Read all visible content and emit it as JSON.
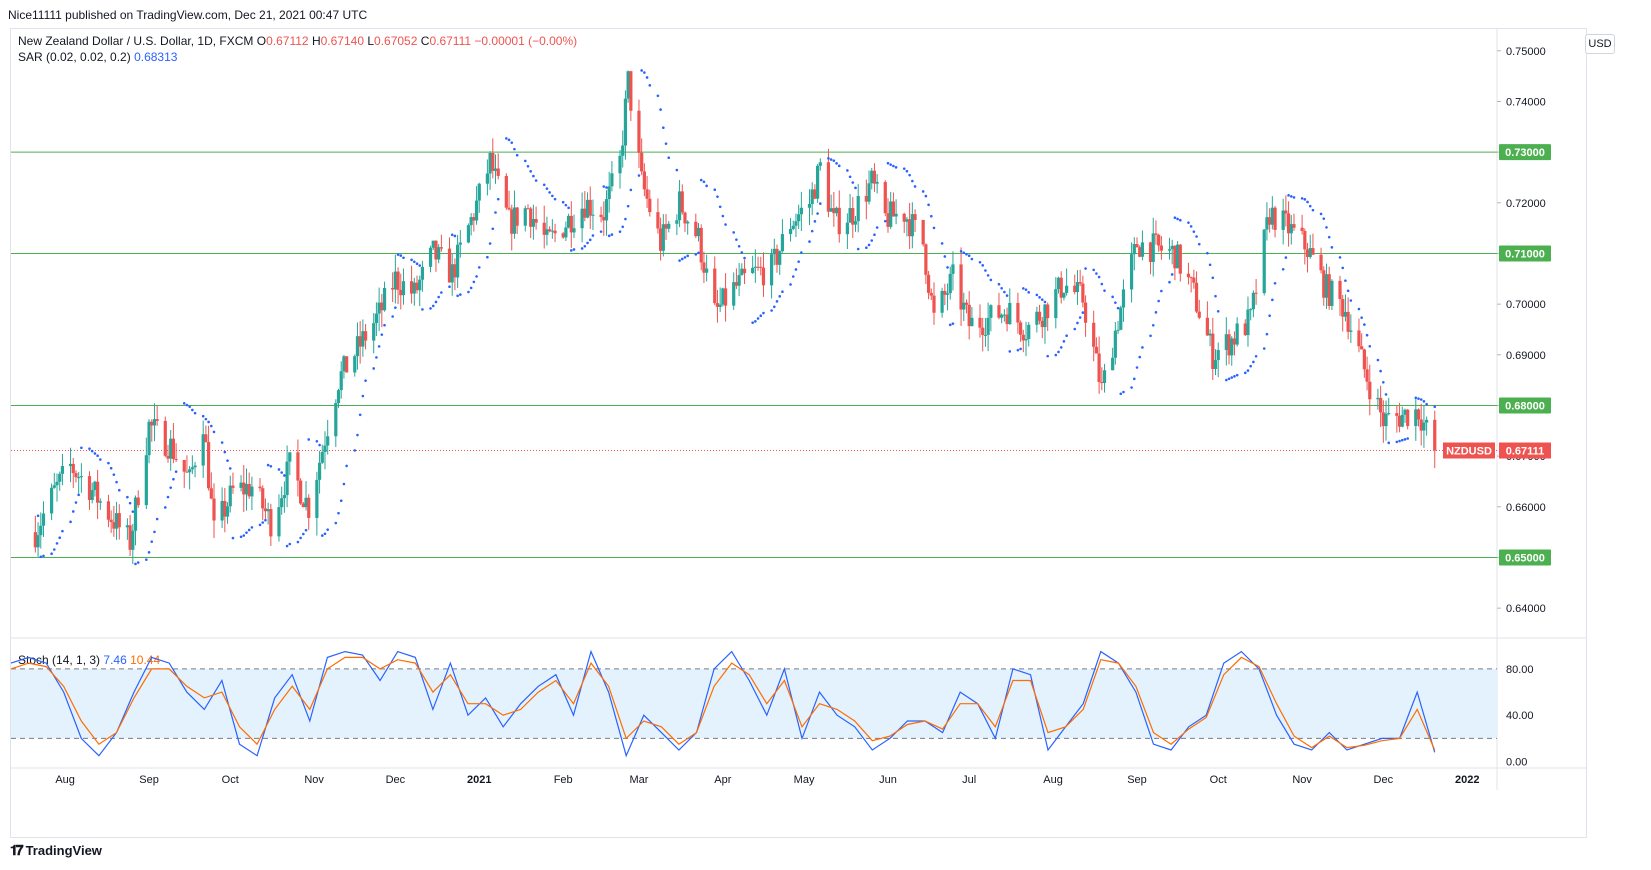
{
  "publish_line": "Nice11111 published on TradingView.com, Dec 21, 2021 00:47 UTC",
  "legend": {
    "symbol": "New Zealand Dollar / U.S. Dollar, 1D, FXCM",
    "o_label": "O",
    "o": "0.67112",
    "h_label": "H",
    "h": "0.67140",
    "l_label": "L",
    "l": "0.67052",
    "c_label": "C",
    "c": "0.67111",
    "change": "−0.00001 (−0.00%)",
    "sar_label": "SAR (0.02, 0.02, 0.2)",
    "sar_value": "0.68313",
    "stoch_label": "Stoch (14, 1, 3)",
    "stoch_k": "7.46",
    "stoch_d": "10.44"
  },
  "currency_button": "USD",
  "brand": "TradingView",
  "colors": {
    "up": "#26a69a",
    "down": "#ef5350",
    "sar": "#2962ff",
    "level": "#4caf50",
    "stoch_k": "#2962ff",
    "stoch_d": "#ff6d00",
    "band": "#e3f2fd"
  },
  "chart_data": [
    {
      "type": "candlestick",
      "title": "New Zealand Dollar / U.S. Dollar, 1D, FXCM",
      "xlim": [
        "2021-07-20",
        "2022-01-12"
      ],
      "ylim": [
        0.6345,
        0.7545
      ],
      "y_ticks": [
        0.64,
        0.65,
        0.66,
        0.67,
        0.68,
        0.69,
        0.7,
        0.71,
        0.72,
        0.73,
        0.74,
        0.75
      ],
      "y_tick_labels": [
        "0.64000",
        "0.65000",
        "0.66000",
        "0.67000",
        "0.68000",
        "0.69000",
        "0.70000",
        "0.71000",
        "0.72000",
        "0.73000",
        "0.74000",
        "0.75000"
      ],
      "x_ticks": [
        {
          "label": "Aug",
          "date": "2020-08-01"
        },
        {
          "label": "Sep",
          "date": "2020-09-01"
        },
        {
          "label": "Oct",
          "date": "2020-10-01"
        },
        {
          "label": "Nov",
          "date": "2020-11-01"
        },
        {
          "label": "Dec",
          "date": "2020-12-01"
        },
        {
          "label": "2021",
          "date": "2021-01-01"
        },
        {
          "label": "Feb",
          "date": "2021-02-01"
        },
        {
          "label": "Mar",
          "date": "2021-03-01"
        },
        {
          "label": "Apr",
          "date": "2021-04-01"
        },
        {
          "label": "May",
          "date": "2021-05-01"
        },
        {
          "label": "Jun",
          "date": "2021-06-01"
        },
        {
          "label": "Jul",
          "date": "2021-07-01"
        },
        {
          "label": "Aug",
          "date": "2021-08-01"
        },
        {
          "label": "Sep",
          "date": "2021-09-01"
        },
        {
          "label": "Oct",
          "date": "2021-10-01"
        },
        {
          "label": "Nov",
          "date": "2021-11-01"
        },
        {
          "label": "Dec",
          "date": "2021-12-01"
        },
        {
          "label": "2022",
          "date": "2022-01-01"
        }
      ],
      "horizontal_levels": [
        {
          "value": 0.73,
          "label": "0.73000"
        },
        {
          "value": 0.71,
          "label": "0.71000"
        },
        {
          "value": 0.68,
          "label": "0.68000"
        },
        {
          "value": 0.65,
          "label": "0.65000"
        }
      ],
      "last_price": {
        "value": 0.67111,
        "symbol_label": "NZDUSD",
        "label": "0.67111"
      },
      "price_path": [
        [
          "2020-07-21",
          0.655
        ],
        [
          "2020-07-28",
          0.663
        ],
        [
          "2020-08-03",
          0.668
        ],
        [
          "2020-08-10",
          0.664
        ],
        [
          "2020-08-18",
          0.658
        ],
        [
          "2020-08-25",
          0.653
        ],
        [
          "2020-09-01",
          0.676
        ],
        [
          "2020-09-09",
          0.672
        ],
        [
          "2020-09-16",
          0.665
        ],
        [
          "2020-09-21",
          0.677
        ],
        [
          "2020-09-25",
          0.655
        ],
        [
          "2020-10-02",
          0.663
        ],
        [
          "2020-10-09",
          0.664
        ],
        [
          "2020-10-16",
          0.657
        ],
        [
          "2020-10-23",
          0.668
        ],
        [
          "2020-10-30",
          0.66
        ],
        [
          "2020-11-06",
          0.676
        ],
        [
          "2020-11-10",
          0.685
        ],
        [
          "2020-11-18",
          0.692
        ],
        [
          "2020-11-25",
          0.698
        ],
        [
          "2020-12-01",
          0.705
        ],
        [
          "2020-12-08",
          0.702
        ],
        [
          "2020-12-15",
          0.71
        ],
        [
          "2020-12-22",
          0.706
        ],
        [
          "2020-12-30",
          0.718
        ],
        [
          "2021-01-05",
          0.728
        ],
        [
          "2021-01-12",
          0.716
        ],
        [
          "2021-01-19",
          0.719
        ],
        [
          "2021-01-26",
          0.712
        ],
        [
          "2021-02-02",
          0.716
        ],
        [
          "2021-02-09",
          0.72
        ],
        [
          "2021-02-16",
          0.718
        ],
        [
          "2021-02-22",
          0.728
        ],
        [
          "2021-02-25",
          0.744
        ],
        [
          "2021-03-02",
          0.724
        ],
        [
          "2021-03-09",
          0.712
        ],
        [
          "2021-03-16",
          0.72
        ],
        [
          "2021-03-23",
          0.713
        ],
        [
          "2021-03-29",
          0.698
        ],
        [
          "2021-04-05",
          0.703
        ],
        [
          "2021-04-12",
          0.706
        ],
        [
          "2021-04-19",
          0.707
        ],
        [
          "2021-04-26",
          0.716
        ],
        [
          "2021-05-03",
          0.72
        ],
        [
          "2021-05-07",
          0.727
        ],
        [
          "2021-05-12",
          0.716
        ],
        [
          "2021-05-19",
          0.718
        ],
        [
          "2021-05-26",
          0.724
        ],
        [
          "2021-05-31",
          0.717
        ],
        [
          "2021-06-07",
          0.718
        ],
        [
          "2021-06-14",
          0.712
        ],
        [
          "2021-06-18",
          0.697
        ],
        [
          "2021-06-25",
          0.705
        ],
        [
          "2021-07-01",
          0.696
        ],
        [
          "2021-07-08",
          0.697
        ],
        [
          "2021-07-15",
          0.699
        ],
        [
          "2021-07-22",
          0.695
        ],
        [
          "2021-07-29",
          0.699
        ],
        [
          "2021-08-05",
          0.704
        ],
        [
          "2021-08-12",
          0.701
        ],
        [
          "2021-08-19",
          0.683
        ],
        [
          "2021-08-25",
          0.697
        ],
        [
          "2021-09-01",
          0.712
        ],
        [
          "2021-09-08",
          0.711
        ],
        [
          "2021-09-15",
          0.71
        ],
        [
          "2021-09-22",
          0.702
        ],
        [
          "2021-09-29",
          0.69
        ],
        [
          "2021-10-06",
          0.693
        ],
        [
          "2021-10-13",
          0.697
        ],
        [
          "2021-10-20",
          0.718
        ],
        [
          "2021-10-27",
          0.715
        ],
        [
          "2021-11-03",
          0.711
        ],
        [
          "2021-11-10",
          0.703
        ],
        [
          "2021-11-17",
          0.699
        ],
        [
          "2021-11-24",
          0.687
        ],
        [
          "2021-12-01",
          0.677
        ],
        [
          "2021-12-08",
          0.678
        ],
        [
          "2021-12-14",
          0.679
        ],
        [
          "2021-12-20",
          0.6711
        ]
      ]
    },
    {
      "type": "line",
      "title": "Stoch (14, 1, 3)",
      "ylim": [
        -3,
        105
      ],
      "y_ticks": [
        0,
        40,
        80
      ],
      "y_tick_labels": [
        "0.00",
        "40.00",
        "80.00"
      ],
      "band": [
        20,
        80
      ],
      "series": [
        {
          "name": "7.46",
          "values": [
            85,
            90,
            85,
            60,
            20,
            5,
            25,
            60,
            90,
            85,
            60,
            45,
            70,
            15,
            5,
            55,
            75,
            35,
            90,
            95,
            92,
            70,
            95,
            90,
            45,
            85,
            40,
            55,
            30,
            50,
            65,
            75,
            40,
            95,
            60,
            5,
            40,
            25,
            10,
            25,
            80,
            95,
            70,
            40,
            80,
            20,
            60,
            40,
            30,
            10,
            20,
            35,
            35,
            25,
            60,
            50,
            20,
            80,
            75,
            10,
            30,
            50,
            95,
            85,
            60,
            15,
            10,
            30,
            40,
            85,
            95,
            80,
            40,
            15,
            10,
            25,
            10,
            15,
            20,
            20,
            60,
            8
          ]
        },
        {
          "name": "10.44",
          "values": [
            80,
            85,
            82,
            65,
            35,
            15,
            25,
            55,
            80,
            80,
            65,
            55,
            60,
            30,
            15,
            45,
            65,
            45,
            80,
            90,
            90,
            80,
            88,
            85,
            60,
            75,
            50,
            50,
            40,
            45,
            60,
            70,
            50,
            85,
            65,
            20,
            35,
            30,
            15,
            25,
            65,
            85,
            75,
            50,
            70,
            30,
            50,
            45,
            35,
            18,
            22,
            32,
            35,
            28,
            50,
            50,
            30,
            70,
            70,
            25,
            30,
            45,
            88,
            85,
            65,
            25,
            15,
            28,
            38,
            75,
            90,
            82,
            50,
            22,
            12,
            22,
            12,
            14,
            18,
            20,
            45,
            10
          ]
        }
      ]
    }
  ]
}
